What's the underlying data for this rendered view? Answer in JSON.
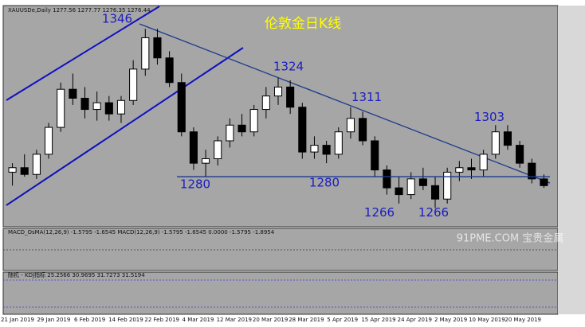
{
  "chart_data": {
    "type": "candlestick",
    "header": "XAUUSDe,Daily  1277.56 1277.77 1276.35 1276.44",
    "title": "伦敦金日K线",
    "ylim": [
      1258,
      1356
    ],
    "annotations": [
      1346,
      1324,
      1311,
      1303,
      1280,
      1280,
      1266,
      1266
    ],
    "x_labels": [
      "21 Jan 2019",
      "29 Jan 2019",
      "6 Feb 2019",
      "14 Feb 2019",
      "22 Feb 2019",
      "4 Mar 2019",
      "12 Mar 2019",
      "20 Mar 2019",
      "28 Mar 2019",
      "5 Apr 2019",
      "15 Apr 2019",
      "24 Apr 2019",
      "2 May 2019",
      "10 May 2019",
      "20 May 2019"
    ],
    "macd_label": "MACD_OsMA(12,26,9) -1.5795 -1.6545 MACD(12,26,9) -1.5795 -1.6545 0.0000 -1.5795 -1.8954",
    "kdj_label": "随机 - KDJ指标 25.2566 30.9695 31.7273 31.5194",
    "watermark": "91PME.COM 宝贵金属",
    "candles": [
      [
        1282,
        1286,
        1276,
        1284
      ],
      [
        1284,
        1290,
        1280,
        1281
      ],
      [
        1281,
        1292,
        1279,
        1290
      ],
      [
        1290,
        1304,
        1288,
        1302
      ],
      [
        1302,
        1322,
        1300,
        1319
      ],
      [
        1319,
        1326,
        1312,
        1315
      ],
      [
        1315,
        1320,
        1306,
        1310
      ],
      [
        1310,
        1318,
        1305,
        1313
      ],
      [
        1313,
        1316,
        1305,
        1308
      ],
      [
        1308,
        1316,
        1304,
        1314
      ],
      [
        1314,
        1332,
        1312,
        1328
      ],
      [
        1328,
        1346,
        1325,
        1342
      ],
      [
        1342,
        1346,
        1330,
        1333
      ],
      [
        1333,
        1336,
        1320,
        1322
      ],
      [
        1322,
        1326,
        1298,
        1300
      ],
      [
        1300,
        1302,
        1283,
        1286
      ],
      [
        1286,
        1292,
        1280,
        1288
      ],
      [
        1288,
        1298,
        1285,
        1296
      ],
      [
        1296,
        1306,
        1293,
        1303
      ],
      [
        1303,
        1308,
        1298,
        1300
      ],
      [
        1300,
        1312,
        1298,
        1310
      ],
      [
        1310,
        1320,
        1306,
        1316
      ],
      [
        1316,
        1324,
        1312,
        1320
      ],
      [
        1320,
        1323,
        1308,
        1311
      ],
      [
        1311,
        1313,
        1288,
        1291
      ],
      [
        1291,
        1298,
        1288,
        1294
      ],
      [
        1294,
        1296,
        1286,
        1290
      ],
      [
        1290,
        1302,
        1288,
        1300
      ],
      [
        1300,
        1311,
        1297,
        1306
      ],
      [
        1306,
        1309,
        1294,
        1296
      ],
      [
        1296,
        1298,
        1280,
        1283
      ],
      [
        1283,
        1285,
        1272,
        1275
      ],
      [
        1275,
        1280,
        1268,
        1272
      ],
      [
        1272,
        1282,
        1270,
        1279
      ],
      [
        1279,
        1284,
        1274,
        1276
      ],
      [
        1276,
        1280,
        1266,
        1270
      ],
      [
        1270,
        1284,
        1268,
        1282
      ],
      [
        1282,
        1287,
        1278,
        1284
      ],
      [
        1284,
        1288,
        1279,
        1283
      ],
      [
        1283,
        1292,
        1280,
        1290
      ],
      [
        1290,
        1303,
        1288,
        1300
      ],
      [
        1300,
        1303,
        1292,
        1294
      ],
      [
        1294,
        1296,
        1284,
        1286
      ],
      [
        1286,
        1288,
        1277,
        1279
      ],
      [
        1279,
        1281,
        1275,
        1276
      ]
    ]
  }
}
